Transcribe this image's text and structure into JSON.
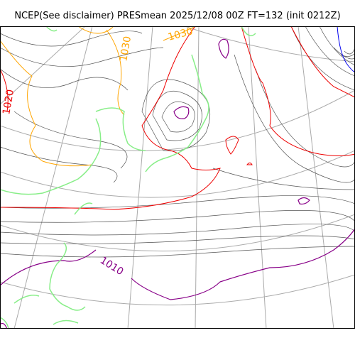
{
  "title": "NCEP(See disclaimer) PRESmean 2025/12/08 00Z FT=132 (init 0212Z)",
  "colors": {
    "isobar": "#555555",
    "graticule": "#aaaaaa",
    "line_1010": "#880088",
    "line_1020": "#ee0000",
    "line_1030": "#ffa500",
    "line_1040": "#0000ee",
    "coastline": "#88ee88",
    "frame": "#000000"
  },
  "contour_labels": {
    "p1010": "1010",
    "p1020": "1020",
    "p1030a": "1030",
    "p1030b": "1030"
  }
}
